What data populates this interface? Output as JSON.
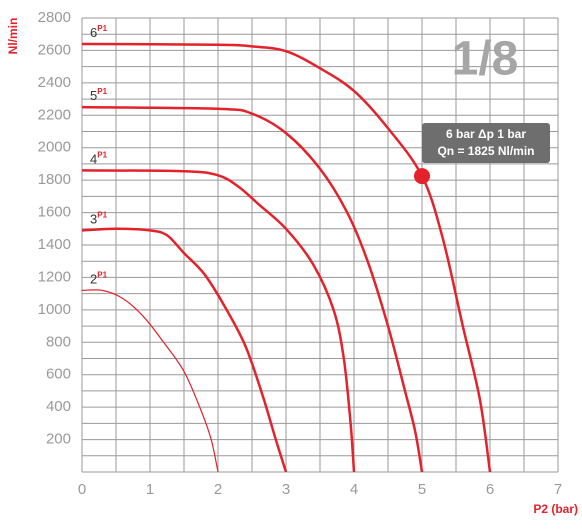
{
  "chart_data": {
    "type": "line",
    "badge": "1/8",
    "y_label": "Nl/min",
    "x_label": "P2 (bar)",
    "xlim": [
      0,
      7
    ],
    "xticks": [
      0,
      1,
      2,
      3,
      4,
      5,
      6,
      7
    ],
    "ylim": [
      0,
      2800
    ],
    "yticks": [
      200,
      400,
      600,
      800,
      1000,
      1200,
      1400,
      1600,
      1800,
      2000,
      2200,
      2400,
      2600,
      2800
    ],
    "xgrid": [
      0,
      0.5,
      1,
      1.5,
      2,
      2.5,
      3,
      3.5,
      4,
      4.5,
      5,
      5.5,
      6,
      6.5,
      7
    ],
    "ygrid": [
      0,
      100,
      200,
      300,
      400,
      500,
      600,
      700,
      800,
      900,
      1000,
      1100,
      1200,
      1300,
      1400,
      1500,
      1600,
      1700,
      1800,
      1900,
      2000,
      2100,
      2200,
      2300,
      2400,
      2500,
      2600,
      2700,
      2800
    ],
    "grid": true,
    "series": [
      {
        "name": "2",
        "sup": "P1",
        "color": "#e3222b",
        "width": 1.2,
        "x": [
          0,
          0.3,
          0.6,
          0.9,
          1.2,
          1.5,
          1.75,
          1.9,
          2
        ],
        "values": [
          1120,
          1120,
          1070,
          960,
          800,
          620,
          380,
          200,
          0
        ]
      },
      {
        "name": "3",
        "sup": "P1",
        "color": "#e3222b",
        "width": 2.5,
        "x": [
          0,
          0.5,
          1,
          1.25,
          1.5,
          1.8,
          2.1,
          2.4,
          2.65,
          2.85,
          3
        ],
        "values": [
          1490,
          1500,
          1490,
          1460,
          1350,
          1220,
          1020,
          780,
          480,
          200,
          0
        ]
      },
      {
        "name": "4",
        "sup": "P1",
        "color": "#e3222b",
        "width": 2.5,
        "x": [
          0,
          1.5,
          2,
          2.3,
          2.6,
          3,
          3.4,
          3.7,
          3.85,
          3.95,
          4
        ],
        "values": [
          1860,
          1855,
          1830,
          1760,
          1650,
          1500,
          1280,
          1000,
          700,
          300,
          0
        ]
      },
      {
        "name": "5",
        "sup": "P1",
        "color": "#e3222b",
        "width": 2.5,
        "x": [
          0,
          2,
          2.5,
          3,
          3.5,
          3.9,
          4.2,
          4.5,
          4.75,
          4.9,
          5
        ],
        "values": [
          2250,
          2240,
          2210,
          2090,
          1870,
          1600,
          1300,
          900,
          500,
          250,
          0
        ]
      },
      {
        "name": "6",
        "sup": "P1",
        "color": "#e3222b",
        "width": 2.5,
        "x": [
          0,
          2,
          2.5,
          3,
          3.5,
          4,
          4.5,
          5,
          5.3,
          5.6,
          5.85,
          6
        ],
        "values": [
          2640,
          2635,
          2625,
          2595,
          2490,
          2350,
          2120,
          1825,
          1450,
          900,
          450,
          0
        ]
      }
    ],
    "marker": {
      "x": 5,
      "y": 1825,
      "color": "#e3222b"
    },
    "annotation": [
      "6 bar Δp 1 bar",
      "Qn = 1825 Nl/min"
    ]
  }
}
